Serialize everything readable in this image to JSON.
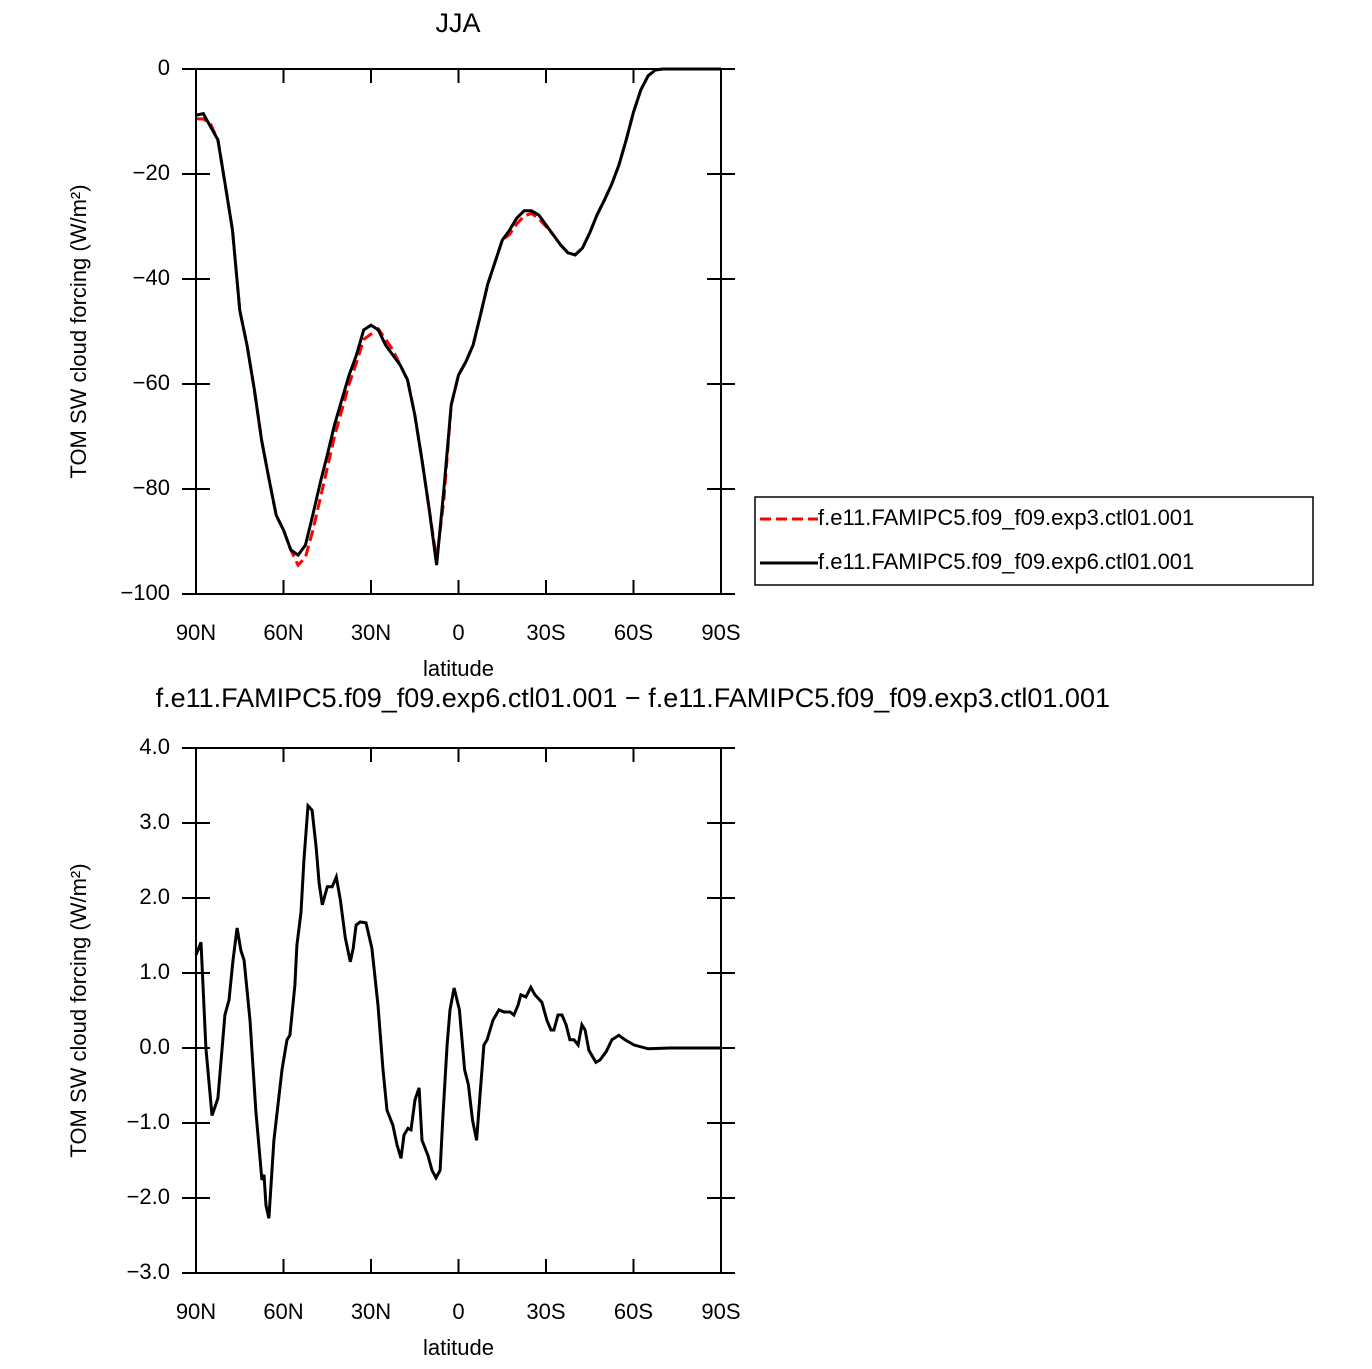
{
  "chart_data": [
    {
      "type": "line",
      "title": "JJA",
      "xlabel": "latitude",
      "ylabel": "TOM SW cloud forcing (W/m²)",
      "x": [
        90,
        87.5,
        85,
        82.5,
        80,
        77.5,
        75,
        72.5,
        70,
        67.5,
        65,
        62.5,
        60,
        57.5,
        55,
        52.5,
        50,
        47.5,
        45,
        42.5,
        40,
        37.5,
        35,
        32.5,
        30,
        27.5,
        25,
        22.5,
        20,
        17.5,
        15,
        12.5,
        10,
        7.5,
        5,
        2.5,
        0,
        -2.5,
        -5,
        -7.5,
        -10,
        -12.5,
        -15,
        -17.5,
        -20,
        -22.5,
        -25,
        -27.5,
        -30,
        -32.5,
        -35,
        -37.5,
        -40,
        -42.5,
        -45,
        -47.5,
        -50,
        -52.5,
        -55,
        -57.5,
        -60,
        -62.5,
        -65,
        -67.5,
        -70,
        -72.5,
        -75,
        -77.5,
        -80,
        -82.5,
        -85,
        -87.5,
        -90
      ],
      "series": [
        {
          "name": "f.e11.FAMIPC5.f09_f09.exp3.ctl01.001",
          "color": "#ff0000",
          "dash": true,
          "values": [
            -9.5,
            -9.5,
            -10.5,
            -13.5,
            -22,
            -30.7,
            -46,
            -52.6,
            -61,
            -70.7,
            -78,
            -85,
            -87.8,
            -91.6,
            -94.5,
            -93,
            -88,
            -82,
            -76,
            -70,
            -65,
            -60,
            -56,
            -51.5,
            -50.5,
            -49.5,
            -51.5,
            -53.5,
            -56.4,
            -59.2,
            -65.9,
            -74.5,
            -84,
            -93.5,
            -82,
            -64,
            -58.3,
            -55.8,
            -52.6,
            -46.9,
            -41,
            -36.8,
            -32.6,
            -31.5,
            -29.5,
            -28,
            -27.5,
            -28.5,
            -30,
            -31.6,
            -33.5,
            -35,
            -35.4,
            -34.1,
            -31.2,
            -27.8,
            -25,
            -22,
            -18.3,
            -13.5,
            -8.2,
            -4,
            -1.3,
            -0.2,
            0,
            0,
            0,
            0,
            0,
            0,
            0,
            0,
            0
          ]
        },
        {
          "name": "f.e11.FAMIPC5.f09_f09.exp6.ctl01.001",
          "color": "#000000",
          "dash": false,
          "values": [
            -8.8,
            -8.5,
            -11,
            -13.5,
            -22,
            -30.7,
            -46,
            -52.6,
            -61,
            -70.7,
            -78,
            -85,
            -87.8,
            -91.6,
            -92.6,
            -90.7,
            -85,
            -79,
            -73.5,
            -67.8,
            -63,
            -58.3,
            -54.5,
            -49.7,
            -48.8,
            -49.7,
            -52.6,
            -54.5,
            -56.4,
            -59.2,
            -65.9,
            -74.5,
            -84,
            -94.5,
            -80,
            -64,
            -58.3,
            -55.8,
            -52.6,
            -46.9,
            -41,
            -36.8,
            -32.6,
            -30.7,
            -28.4,
            -27,
            -27,
            -27.8,
            -29.7,
            -31.6,
            -33.5,
            -35,
            -35.4,
            -34.1,
            -31.2,
            -27.8,
            -25,
            -22,
            -18.3,
            -13.5,
            -8.2,
            -4,
            -1.3,
            -0.2,
            0,
            0,
            0,
            0,
            0,
            0,
            0,
            0,
            0
          ]
        }
      ],
      "xlim": [
        90,
        -90
      ],
      "xticks": [
        {
          "value": 90,
          "label": "90N"
        },
        {
          "value": 60,
          "label": "60N"
        },
        {
          "value": 30,
          "label": "30N"
        },
        0,
        {
          "value": -30,
          "label": "30S"
        },
        {
          "value": -60,
          "label": "60S"
        },
        {
          "value": -90,
          "label": "90S"
        }
      ],
      "ylim": [
        -100,
        0
      ],
      "yticks": [
        0,
        {
          "value": -20,
          "label": "−20"
        },
        {
          "value": -40,
          "label": "−40"
        },
        {
          "value": -60,
          "label": "−60"
        },
        {
          "value": -80,
          "label": "−80"
        },
        {
          "value": -100,
          "label": "−100"
        }
      ]
    },
    {
      "type": "line",
      "title": "f.e11.FAMIPC5.f09_f09.exp6.ctl01.001 − f.e11.FAMIPC5.f09_f09.exp3.ctl01.001",
      "xlabel": "latitude",
      "ylabel": "TOM SW cloud forcing (W/m²)",
      "x": [
        90,
        88.3,
        86.6,
        84.5,
        82.5,
        80.1,
        78.7,
        77.3,
        75.9,
        74.6,
        73.5,
        71.5,
        69.5,
        67.4,
        66.7,
        66,
        65,
        63.3,
        60.5,
        58.8,
        57.8,
        56.1,
        55.4,
        54,
        53,
        51.6,
        50.2,
        48.8,
        47.8,
        46.7,
        45,
        43.3,
        41.9,
        40.5,
        38.8,
        37.1,
        36.1,
        35.1,
        33.7,
        31.7,
        29.7,
        27.6,
        25.9,
        24.5,
        22.5,
        21.1,
        19.7,
        18.7,
        17.3,
        16.3,
        14.9,
        13.5,
        12.5,
        10.5,
        9.1,
        7.7,
        6.3,
        5.3,
        3.9,
        2.9,
        1.5,
        -0.3,
        -2.1,
        -3.4,
        -4.8,
        -6.2,
        -7.5,
        -8.7,
        -9.8,
        -11.8,
        -13.9,
        -15.6,
        -17.7,
        -19,
        -20.4,
        -21.4,
        -23.1,
        -24.8,
        -26.2,
        -28.6,
        -30.3,
        -31.7,
        -32.7,
        -34.1,
        -35.5,
        -36.9,
        -38.2,
        -39.6,
        -41,
        -42.3,
        -43.4,
        -44.7,
        -47.1,
        -48.5,
        -50.6,
        -52.6,
        -55,
        -57.1,
        -60.2,
        -65,
        -72.5,
        -90
      ],
      "values": [
        1.24,
        1.41,
        0,
        -0.9,
        -0.67,
        0.44,
        0.64,
        1.17,
        1.6,
        1.3,
        1.17,
        0.37,
        -0.83,
        -1.76,
        -1.69,
        -2.1,
        -2.27,
        -1.23,
        -0.29,
        0.11,
        0.17,
        0.84,
        1.37,
        1.81,
        2.5,
        3.23,
        3.17,
        2.67,
        2.2,
        1.91,
        2.15,
        2.15,
        2.28,
        1.97,
        1.47,
        1.15,
        1.33,
        1.64,
        1.68,
        1.67,
        1.33,
        0.57,
        -0.29,
        -0.83,
        -1.03,
        -1.29,
        -1.47,
        -1.16,
        -1.07,
        -1.09,
        -0.69,
        -0.53,
        -1.23,
        -1.43,
        -1.63,
        -1.73,
        -1.63,
        -0.89,
        0.04,
        0.51,
        0.8,
        0.51,
        -0.29,
        -0.49,
        -0.96,
        -1.23,
        -0.56,
        0.04,
        0.11,
        0.37,
        0.51,
        0.48,
        0.48,
        0.44,
        0.57,
        0.71,
        0.68,
        0.81,
        0.71,
        0.61,
        0.37,
        0.24,
        0.24,
        0.44,
        0.44,
        0.31,
        0.11,
        0.11,
        0.04,
        0.31,
        0.24,
        -0.03,
        -0.19,
        -0.16,
        -0.05,
        0.11,
        0.17,
        0.11,
        0.04,
        -0.01,
        0,
        0
      ],
      "color": "#000000",
      "xlim": [
        90,
        -90
      ],
      "xticks": [
        {
          "value": 90,
          "label": "90N"
        },
        {
          "value": 60,
          "label": "60N"
        },
        {
          "value": 30,
          "label": "30N"
        },
        0,
        {
          "value": -30,
          "label": "30S"
        },
        {
          "value": -60,
          "label": "60S"
        },
        {
          "value": -90,
          "label": "90S"
        }
      ],
      "ylim": [
        -3,
        4
      ],
      "yticks": [
        {
          "value": 4,
          "label": "4.0"
        },
        {
          "value": 3,
          "label": "3.0"
        },
        {
          "value": 2,
          "label": "2.0"
        },
        {
          "value": 1,
          "label": "1.0"
        },
        {
          "value": 0,
          "label": "0.0"
        },
        {
          "value": -1,
          "label": "−1.0"
        },
        {
          "value": -2,
          "label": "−2.0"
        },
        {
          "value": -3,
          "label": "−3.0"
        }
      ]
    }
  ]
}
